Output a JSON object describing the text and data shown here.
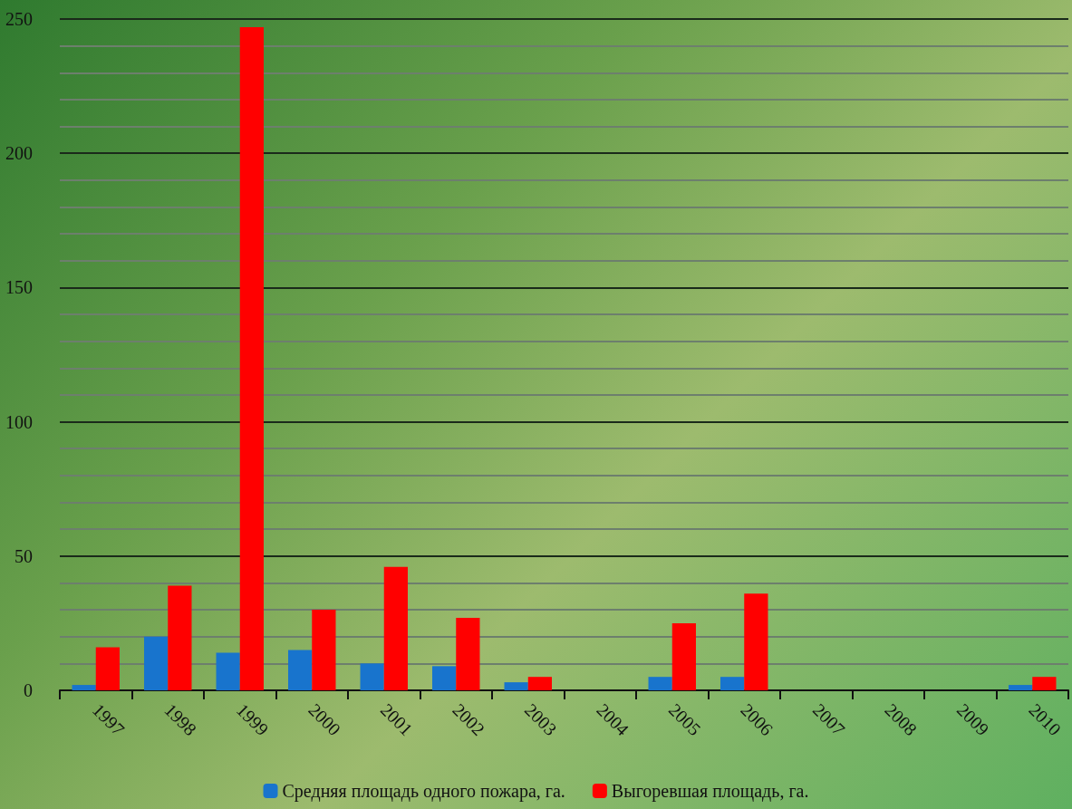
{
  "chart_data": {
    "type": "bar",
    "categories": [
      "1997",
      "1998",
      "1999",
      "2000",
      "2001",
      "2002",
      "2003",
      "2004",
      "2005",
      "2006",
      "2007",
      "2008",
      "2009",
      "2010"
    ],
    "series": [
      {
        "name": "Средняя площадь одного пожара, га.",
        "color": "#1874cd",
        "values": [
          2,
          20,
          14,
          15,
          10,
          9,
          3,
          0,
          5,
          5,
          0,
          0,
          0,
          2
        ]
      },
      {
        "name": "Выгоревшая площадь, га.",
        "color": "#ff0000",
        "values": [
          16,
          39,
          247,
          30,
          46,
          27,
          5,
          0,
          25,
          36,
          0,
          0,
          0,
          5
        ]
      }
    ],
    "ylim": [
      0,
      250
    ],
    "yticks": [
      0,
      50,
      100,
      150,
      200,
      250
    ],
    "grid": true,
    "legend": "bottom"
  }
}
